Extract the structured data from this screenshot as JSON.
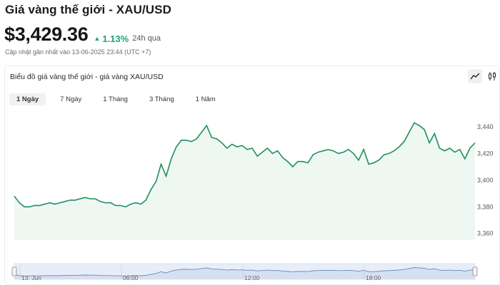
{
  "header": {
    "title": "Giá vàng thế giới - XAU/USD",
    "price": "$3,429.36",
    "change": "1.13%",
    "period": "24h qua",
    "updated": "Cập nhật gần nhất vào 13-06-2025 23:44 (UTC +7)"
  },
  "card": {
    "title": "Biểu đồ giá vàng thế giới - giá vàng XAU/USD",
    "tools": [
      "line-chart-icon",
      "candlestick-icon"
    ]
  },
  "tabs": [
    {
      "label": "1 Ngày",
      "active": true
    },
    {
      "label": "7 Ngày",
      "active": false
    },
    {
      "label": "1 Tháng",
      "active": false
    },
    {
      "label": "3 Tháng",
      "active": false
    },
    {
      "label": "1 Năm",
      "active": false
    }
  ],
  "colors": {
    "line": "#1f8f5f",
    "fill": "#eef7f2",
    "up": "#18a873"
  },
  "chart_data": {
    "type": "area",
    "yticks": [
      "3,440",
      "3,420",
      "3,400",
      "3,380",
      "3,360"
    ],
    "ylim": [
      3355,
      3455
    ],
    "values": [
      3388,
      3383,
      3380,
      3380,
      3381,
      3381,
      3382,
      3383,
      3382,
      3383,
      3384,
      3385,
      3385,
      3386,
      3387,
      3386,
      3386,
      3384,
      3383,
      3383,
      3381,
      3381,
      3380,
      3382,
      3383,
      3382,
      3385,
      3393,
      3399,
      3412,
      3403,
      3416,
      3425,
      3430,
      3430,
      3429,
      3431,
      3436,
      3441,
      3432,
      3431,
      3428,
      3424,
      3427,
      3425,
      3426,
      3423,
      3424,
      3418,
      3421,
      3424,
      3420,
      3422,
      3417,
      3414,
      3410,
      3414,
      3414,
      3413,
      3419,
      3421,
      3422,
      3423,
      3422,
      3420,
      3421,
      3423,
      3420,
      3415,
      3423,
      3412,
      3413,
      3415,
      3419,
      3420,
      3422,
      3425,
      3429,
      3436,
      3443,
      3441,
      3438,
      3428,
      3435,
      3424,
      3422,
      3424,
      3421,
      3423,
      3416,
      3424,
      3428
    ],
    "navigator": {
      "xlabels": [
        "13. Jun",
        "06:00",
        "12:00",
        "18:00"
      ]
    }
  }
}
